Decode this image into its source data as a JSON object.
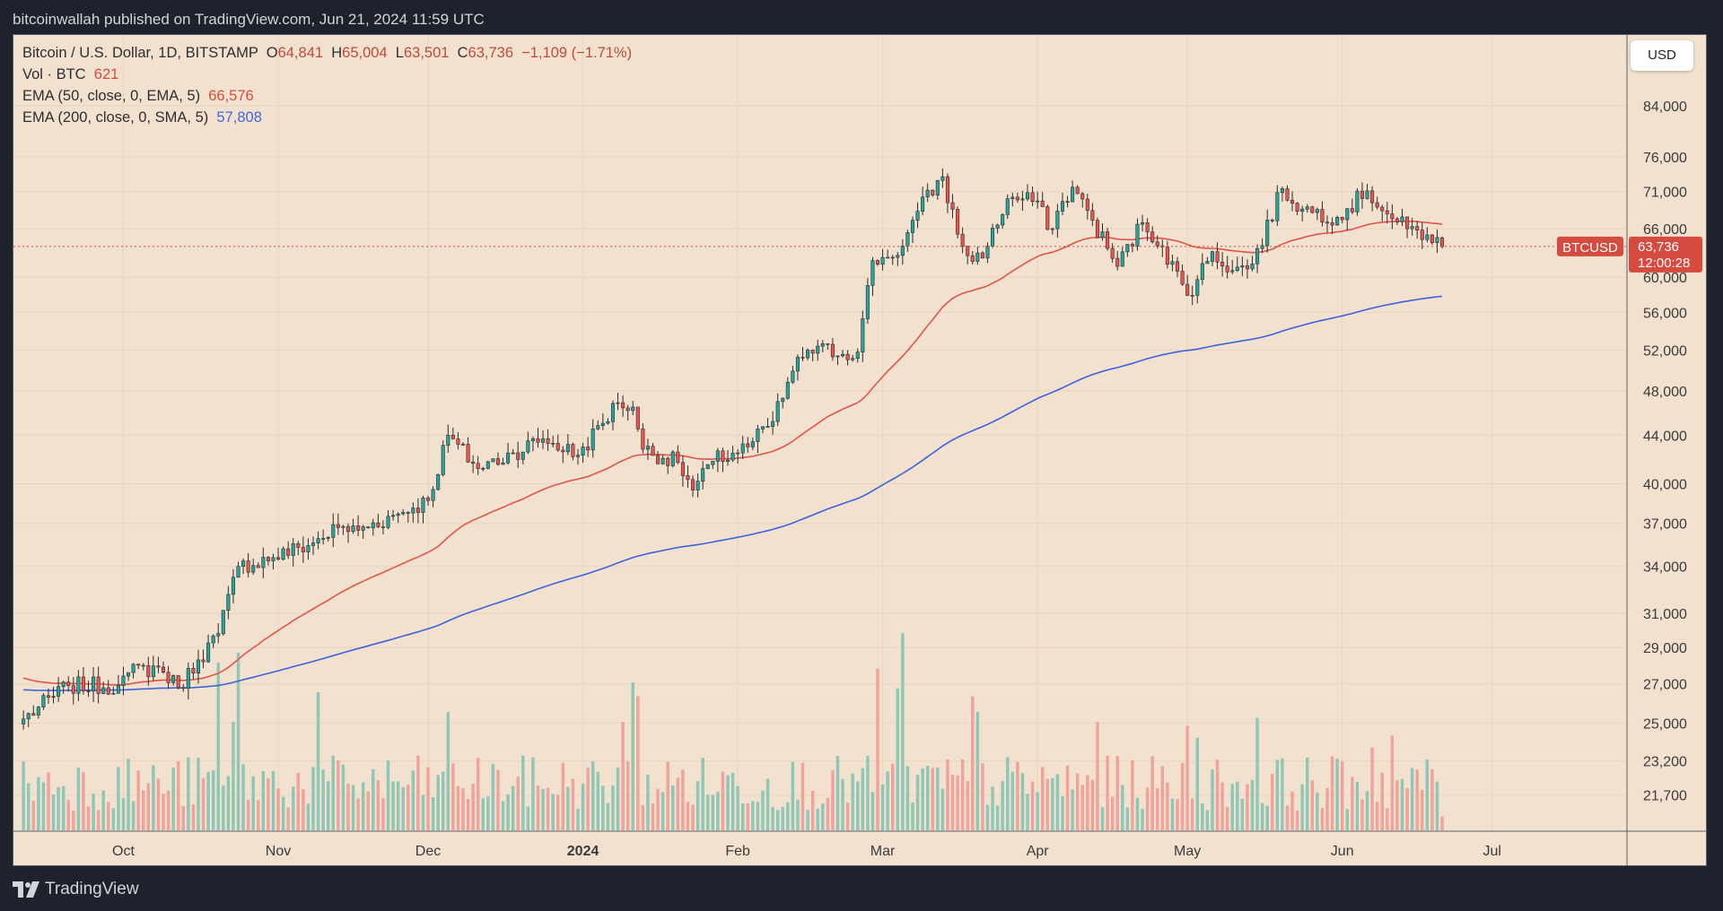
{
  "header": {
    "published": "bitcoinwallah published on TradingView.com, Jun 21, 2024 11:59 UTC"
  },
  "legend": {
    "symbol": "Bitcoin / U.S. Dollar, 1D, BITSTAMP",
    "o_label": "O",
    "o": "64,841",
    "h_label": "H",
    "h": "65,004",
    "l_label": "L",
    "l": "63,501",
    "c_label": "C",
    "c": "63,736",
    "change": "−1,109 (−1.71%)",
    "vol_label": "Vol · BTC",
    "vol_value": "621",
    "ema50_label": "EMA (50, close, 0, EMA, 5)",
    "ema50_value": "66,576",
    "ema200_label": "EMA (200, close, 0, SMA, 5)",
    "ema200_value": "57,808"
  },
  "currency_button": "USD",
  "footer": {
    "brand": "TradingView"
  },
  "colors": {
    "up": "#26a69a",
    "down": "#ef5350",
    "vol_up": "#8fc7b6",
    "vol_down": "#f0a39b",
    "ema50": "#e0554a",
    "ema200": "#3b63db",
    "tag": "#d64b3f",
    "grid": "#e9d4bf"
  },
  "chart_data": {
    "type": "candlestick",
    "symbol": "BTCUSD",
    "title": "Bitcoin / U.S. Dollar, 1D, BITSTAMP",
    "y_scale": "log",
    "ylim": [
      20500,
      90000
    ],
    "yticks": [
      "84,000",
      "76,000",
      "71,000",
      "66,000",
      "60,000",
      "56,000",
      "52,000",
      "48,000",
      "44,000",
      "40,000",
      "37,000",
      "34,000",
      "31,000",
      "29,000",
      "27,000",
      "25,000",
      "23,200",
      "21,700"
    ],
    "xticks": [
      {
        "label": "Oct",
        "date": "2023-10-01"
      },
      {
        "label": "Nov",
        "date": "2023-11-01"
      },
      {
        "label": "Dec",
        "date": "2023-12-01"
      },
      {
        "label": "2024",
        "date": "2024-01-01",
        "bold": true
      },
      {
        "label": "Feb",
        "date": "2024-02-01"
      },
      {
        "label": "Mar",
        "date": "2024-03-01"
      },
      {
        "label": "Apr",
        "date": "2024-04-01"
      },
      {
        "label": "May",
        "date": "2024-05-01"
      },
      {
        "label": "Jun",
        "date": "2024-06-01"
      },
      {
        "label": "Jul",
        "date": "2024-07-01"
      }
    ],
    "start_date": "2023-09-09",
    "end_date": "2024-07-28",
    "last_price": {
      "label": "BTCUSD",
      "value": "63,736",
      "countdown": "12:00:28",
      "price": 63736,
      "date": "2024-06-21"
    },
    "close_anchors": [
      [
        "2023-09-11",
        25200
      ],
      [
        "2023-09-20",
        26900
      ],
      [
        "2023-09-30",
        26900
      ],
      [
        "2023-10-02",
        27600
      ],
      [
        "2023-10-08",
        27900
      ],
      [
        "2023-10-12",
        26800
      ],
      [
        "2023-10-16",
        28300
      ],
      [
        "2023-10-20",
        29800
      ],
      [
        "2023-10-24",
        34000
      ],
      [
        "2023-10-31",
        34600
      ],
      [
        "2023-11-08",
        35600
      ],
      [
        "2023-11-13",
        36700
      ],
      [
        "2023-11-17",
        36500
      ],
      [
        "2023-11-25",
        37700
      ],
      [
        "2023-12-01",
        38700
      ],
      [
        "2023-12-05",
        44000
      ],
      [
        "2023-12-11",
        41200
      ],
      [
        "2023-12-18",
        42500
      ],
      [
        "2023-12-24",
        43700
      ],
      [
        "2023-12-31",
        42300
      ],
      [
        "2024-01-08",
        46900
      ],
      [
        "2024-01-11",
        46500
      ],
      [
        "2024-01-13",
        42800
      ],
      [
        "2024-01-20",
        41700
      ],
      [
        "2024-01-23",
        39500
      ],
      [
        "2024-01-27",
        41800
      ],
      [
        "2024-02-03",
        43000
      ],
      [
        "2024-02-08",
        45200
      ],
      [
        "2024-02-12",
        49900
      ],
      [
        "2024-02-15",
        52000
      ],
      [
        "2024-02-25",
        51800
      ],
      [
        "2024-02-28",
        62000
      ],
      [
        "2024-03-02",
        62400
      ],
      [
        "2024-03-05",
        63800
      ],
      [
        "2024-03-08",
        68300
      ],
      [
        "2024-03-13",
        73100
      ],
      [
        "2024-03-16",
        65300
      ],
      [
        "2024-03-19",
        61900
      ],
      [
        "2024-03-22",
        63800
      ],
      [
        "2024-03-26",
        70000
      ],
      [
        "2024-04-01",
        69700
      ],
      [
        "2024-04-03",
        65900
      ],
      [
        "2024-04-08",
        71600
      ],
      [
        "2024-04-12",
        67100
      ],
      [
        "2024-04-17",
        61300
      ],
      [
        "2024-04-22",
        66800
      ],
      [
        "2024-04-26",
        63700
      ],
      [
        "2024-05-01",
        57900
      ],
      [
        "2024-05-06",
        63100
      ],
      [
        "2024-05-10",
        60800
      ],
      [
        "2024-05-14",
        61600
      ],
      [
        "2024-05-20",
        71400
      ],
      [
        "2024-05-24",
        68600
      ],
      [
        "2024-05-31",
        67500
      ],
      [
        "2024-06-06",
        71100
      ],
      [
        "2024-06-11",
        67300
      ],
      [
        "2024-06-14",
        66000
      ],
      [
        "2024-06-18",
        65200
      ],
      [
        "2024-06-21",
        63736
      ]
    ],
    "volume_scale": {
      "unit": "BTC",
      "min": 0,
      "max": 1
    },
    "volume_spikes": [
      [
        "2023-10-20",
        0.85
      ],
      [
        "2023-10-24",
        0.9
      ],
      [
        "2023-10-23",
        0.55
      ],
      [
        "2023-11-09",
        0.7
      ],
      [
        "2023-12-05",
        0.6
      ],
      [
        "2024-01-09",
        0.55
      ],
      [
        "2024-01-11",
        0.75
      ],
      [
        "2024-01-12",
        0.68
      ],
      [
        "2024-02-29",
        0.82
      ],
      [
        "2024-03-05",
        1.0
      ],
      [
        "2024-03-04",
        0.72
      ],
      [
        "2024-03-19",
        0.68
      ],
      [
        "2024-03-20",
        0.6
      ],
      [
        "2024-04-13",
        0.55
      ],
      [
        "2024-05-01",
        0.53
      ],
      [
        "2024-05-03",
        0.47
      ],
      [
        "2024-05-15",
        0.57
      ],
      [
        "2024-06-07",
        0.42
      ],
      [
        "2024-06-11",
        0.48
      ]
    ],
    "ema50_end": 66576,
    "ema200_end": 57808
  }
}
